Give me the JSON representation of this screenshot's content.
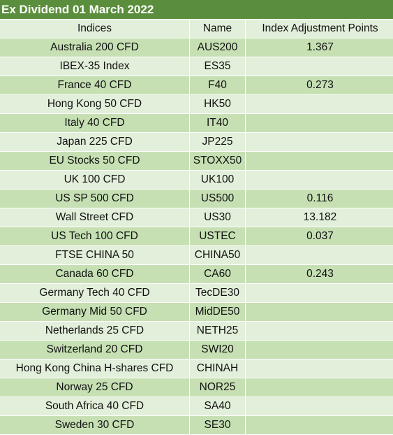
{
  "title": "Ex Dividend 01 March 2022",
  "headers": [
    "Indices",
    "Name",
    "Index Adjustment Points"
  ],
  "rows": [
    {
      "index": "Australia 200 CFD",
      "name": "AUS200",
      "points": "1.367"
    },
    {
      "index": "IBEX-35 Index",
      "name": "ES35",
      "points": ""
    },
    {
      "index": "France 40 CFD",
      "name": "F40",
      "points": "0.273"
    },
    {
      "index": "Hong Kong 50 CFD",
      "name": "HK50",
      "points": ""
    },
    {
      "index": "Italy 40 CFD",
      "name": "IT40",
      "points": ""
    },
    {
      "index": "Japan 225 CFD",
      "name": "JP225",
      "points": ""
    },
    {
      "index": "EU Stocks 50 CFD",
      "name": "STOXX50",
      "points": ""
    },
    {
      "index": "UK 100 CFD",
      "name": "UK100",
      "points": ""
    },
    {
      "index": "US SP 500 CFD",
      "name": "US500",
      "points": "0.116"
    },
    {
      "index": "Wall Street CFD",
      "name": "US30",
      "points": "13.182"
    },
    {
      "index": "US Tech 100 CFD",
      "name": "USTEC",
      "points": "0.037"
    },
    {
      "index": "FTSE CHINA 50",
      "name": "CHINA50",
      "points": ""
    },
    {
      "index": "Canada 60 CFD",
      "name": "CA60",
      "points": "0.243"
    },
    {
      "index": "Germany Tech 40 CFD",
      "name": "TecDE30",
      "points": ""
    },
    {
      "index": "Germany Mid 50 CFD",
      "name": "MidDE50",
      "points": ""
    },
    {
      "index": "Netherlands 25 CFD",
      "name": "NETH25",
      "points": ""
    },
    {
      "index": "Switzerland 20 CFD",
      "name": "SWI20",
      "points": ""
    },
    {
      "index": "Hong Kong China H-shares CFD",
      "name": "CHINAH",
      "points": ""
    },
    {
      "index": "Norway 25 CFD",
      "name": "NOR25",
      "points": ""
    },
    {
      "index": "South Africa 40 CFD",
      "name": "SA40",
      "points": ""
    },
    {
      "index": "Sweden 30 CFD",
      "name": "SE30",
      "points": ""
    }
  ],
  "colors": {
    "title_bg": "#5b8e3c",
    "row_light": "#e2efda",
    "row_dark": "#c6e0b4"
  }
}
